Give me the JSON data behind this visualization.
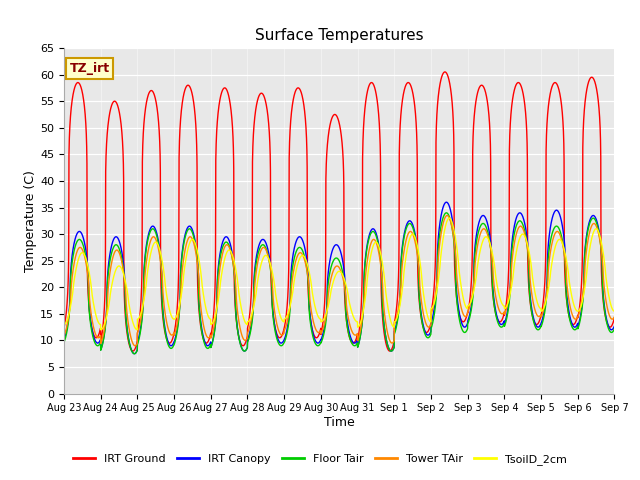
{
  "title": "Surface Temperatures",
  "xlabel": "Time",
  "ylabel": "Temperature (C)",
  "ylim": [
    0,
    65
  ],
  "yticks": [
    0,
    5,
    10,
    15,
    20,
    25,
    30,
    35,
    40,
    45,
    50,
    55,
    60,
    65
  ],
  "background_color": "#e8e8e8",
  "figure_bg": "#ffffff",
  "annotation_label": "TZ_irt",
  "annotation_bg": "#ffffcc",
  "annotation_border": "#cc9900",
  "series_colors": {
    "IRT Ground": "#ff0000",
    "IRT Canopy": "#0000ff",
    "Floor Tair": "#00cc00",
    "Tower TAir": "#ff8800",
    "TsoilD_2cm": "#ffff00"
  },
  "x_tick_labels": [
    "Aug 23",
    "Aug 24",
    "Aug 25",
    "Aug 26",
    "Aug 27",
    "Aug 28",
    "Aug 29",
    "Aug 30",
    "Aug 31",
    "Sep 1",
    "Sep 2",
    "Sep 3",
    "Sep 4",
    "Sep 5",
    "Sep 6",
    "Sep 7"
  ],
  "num_days": 15,
  "n_points_per_day": 288,
  "peaks": {
    "IRT Ground": [
      58.5,
      55.0,
      57.0,
      58.0,
      57.5,
      56.5,
      57.5,
      52.5,
      58.5,
      58.5,
      60.5,
      58.0,
      58.5,
      58.5,
      59.5
    ],
    "IRT Canopy": [
      30.5,
      29.5,
      31.5,
      31.5,
      29.5,
      29.0,
      29.5,
      28.0,
      31.0,
      32.5,
      36.0,
      33.5,
      34.0,
      34.5,
      33.5
    ],
    "Floor Tair": [
      29.0,
      28.0,
      31.0,
      31.0,
      28.5,
      28.0,
      27.5,
      25.5,
      30.5,
      32.0,
      34.0,
      32.0,
      32.5,
      31.5,
      33.0
    ],
    "Tower TAir": [
      27.5,
      27.0,
      29.5,
      29.5,
      28.0,
      27.5,
      26.5,
      24.0,
      29.0,
      30.5,
      33.5,
      31.0,
      31.5,
      30.5,
      32.0
    ],
    "TsoilD_2cm": [
      26.5,
      24.0,
      28.5,
      29.0,
      27.0,
      26.0,
      26.0,
      23.0,
      28.5,
      30.0,
      33.0,
      29.5,
      30.0,
      29.0,
      31.0
    ]
  },
  "troughs": {
    "IRT Ground": [
      10.5,
      8.0,
      9.5,
      9.5,
      9.0,
      10.5,
      10.5,
      9.5,
      8.0,
      11.5,
      13.5,
      13.5,
      13.0,
      13.0,
      12.5
    ],
    "IRT Canopy": [
      9.5,
      7.5,
      9.0,
      9.0,
      8.0,
      9.5,
      9.5,
      9.5,
      8.0,
      11.0,
      12.5,
      13.0,
      12.5,
      12.5,
      12.0
    ],
    "Floor Tair": [
      9.0,
      7.5,
      8.5,
      8.5,
      8.0,
      9.0,
      9.0,
      9.0,
      8.0,
      10.5,
      11.5,
      12.5,
      12.0,
      12.0,
      11.5
    ],
    "Tower TAir": [
      10.5,
      9.0,
      11.0,
      10.5,
      10.0,
      11.0,
      11.5,
      11.0,
      9.5,
      12.5,
      14.5,
      15.0,
      14.5,
      14.0,
      14.0
    ],
    "TsoilD_2cm": [
      13.0,
      12.0,
      14.0,
      14.0,
      13.0,
      13.5,
      14.0,
      13.5,
      12.5,
      13.5,
      16.0,
      16.5,
      16.0,
      15.5,
      15.5
    ]
  },
  "peak_phase": {
    "IRT Ground": 0.38,
    "IRT Canopy": 0.42,
    "Floor Tair": 0.42,
    "Tower TAir": 0.44,
    "TsoilD_2cm": 0.5
  },
  "sharpness": {
    "IRT Ground": 4.0,
    "IRT Canopy": 2.0,
    "Floor Tair": 2.0,
    "Tower TAir": 1.5,
    "TsoilD_2cm": 1.2
  }
}
